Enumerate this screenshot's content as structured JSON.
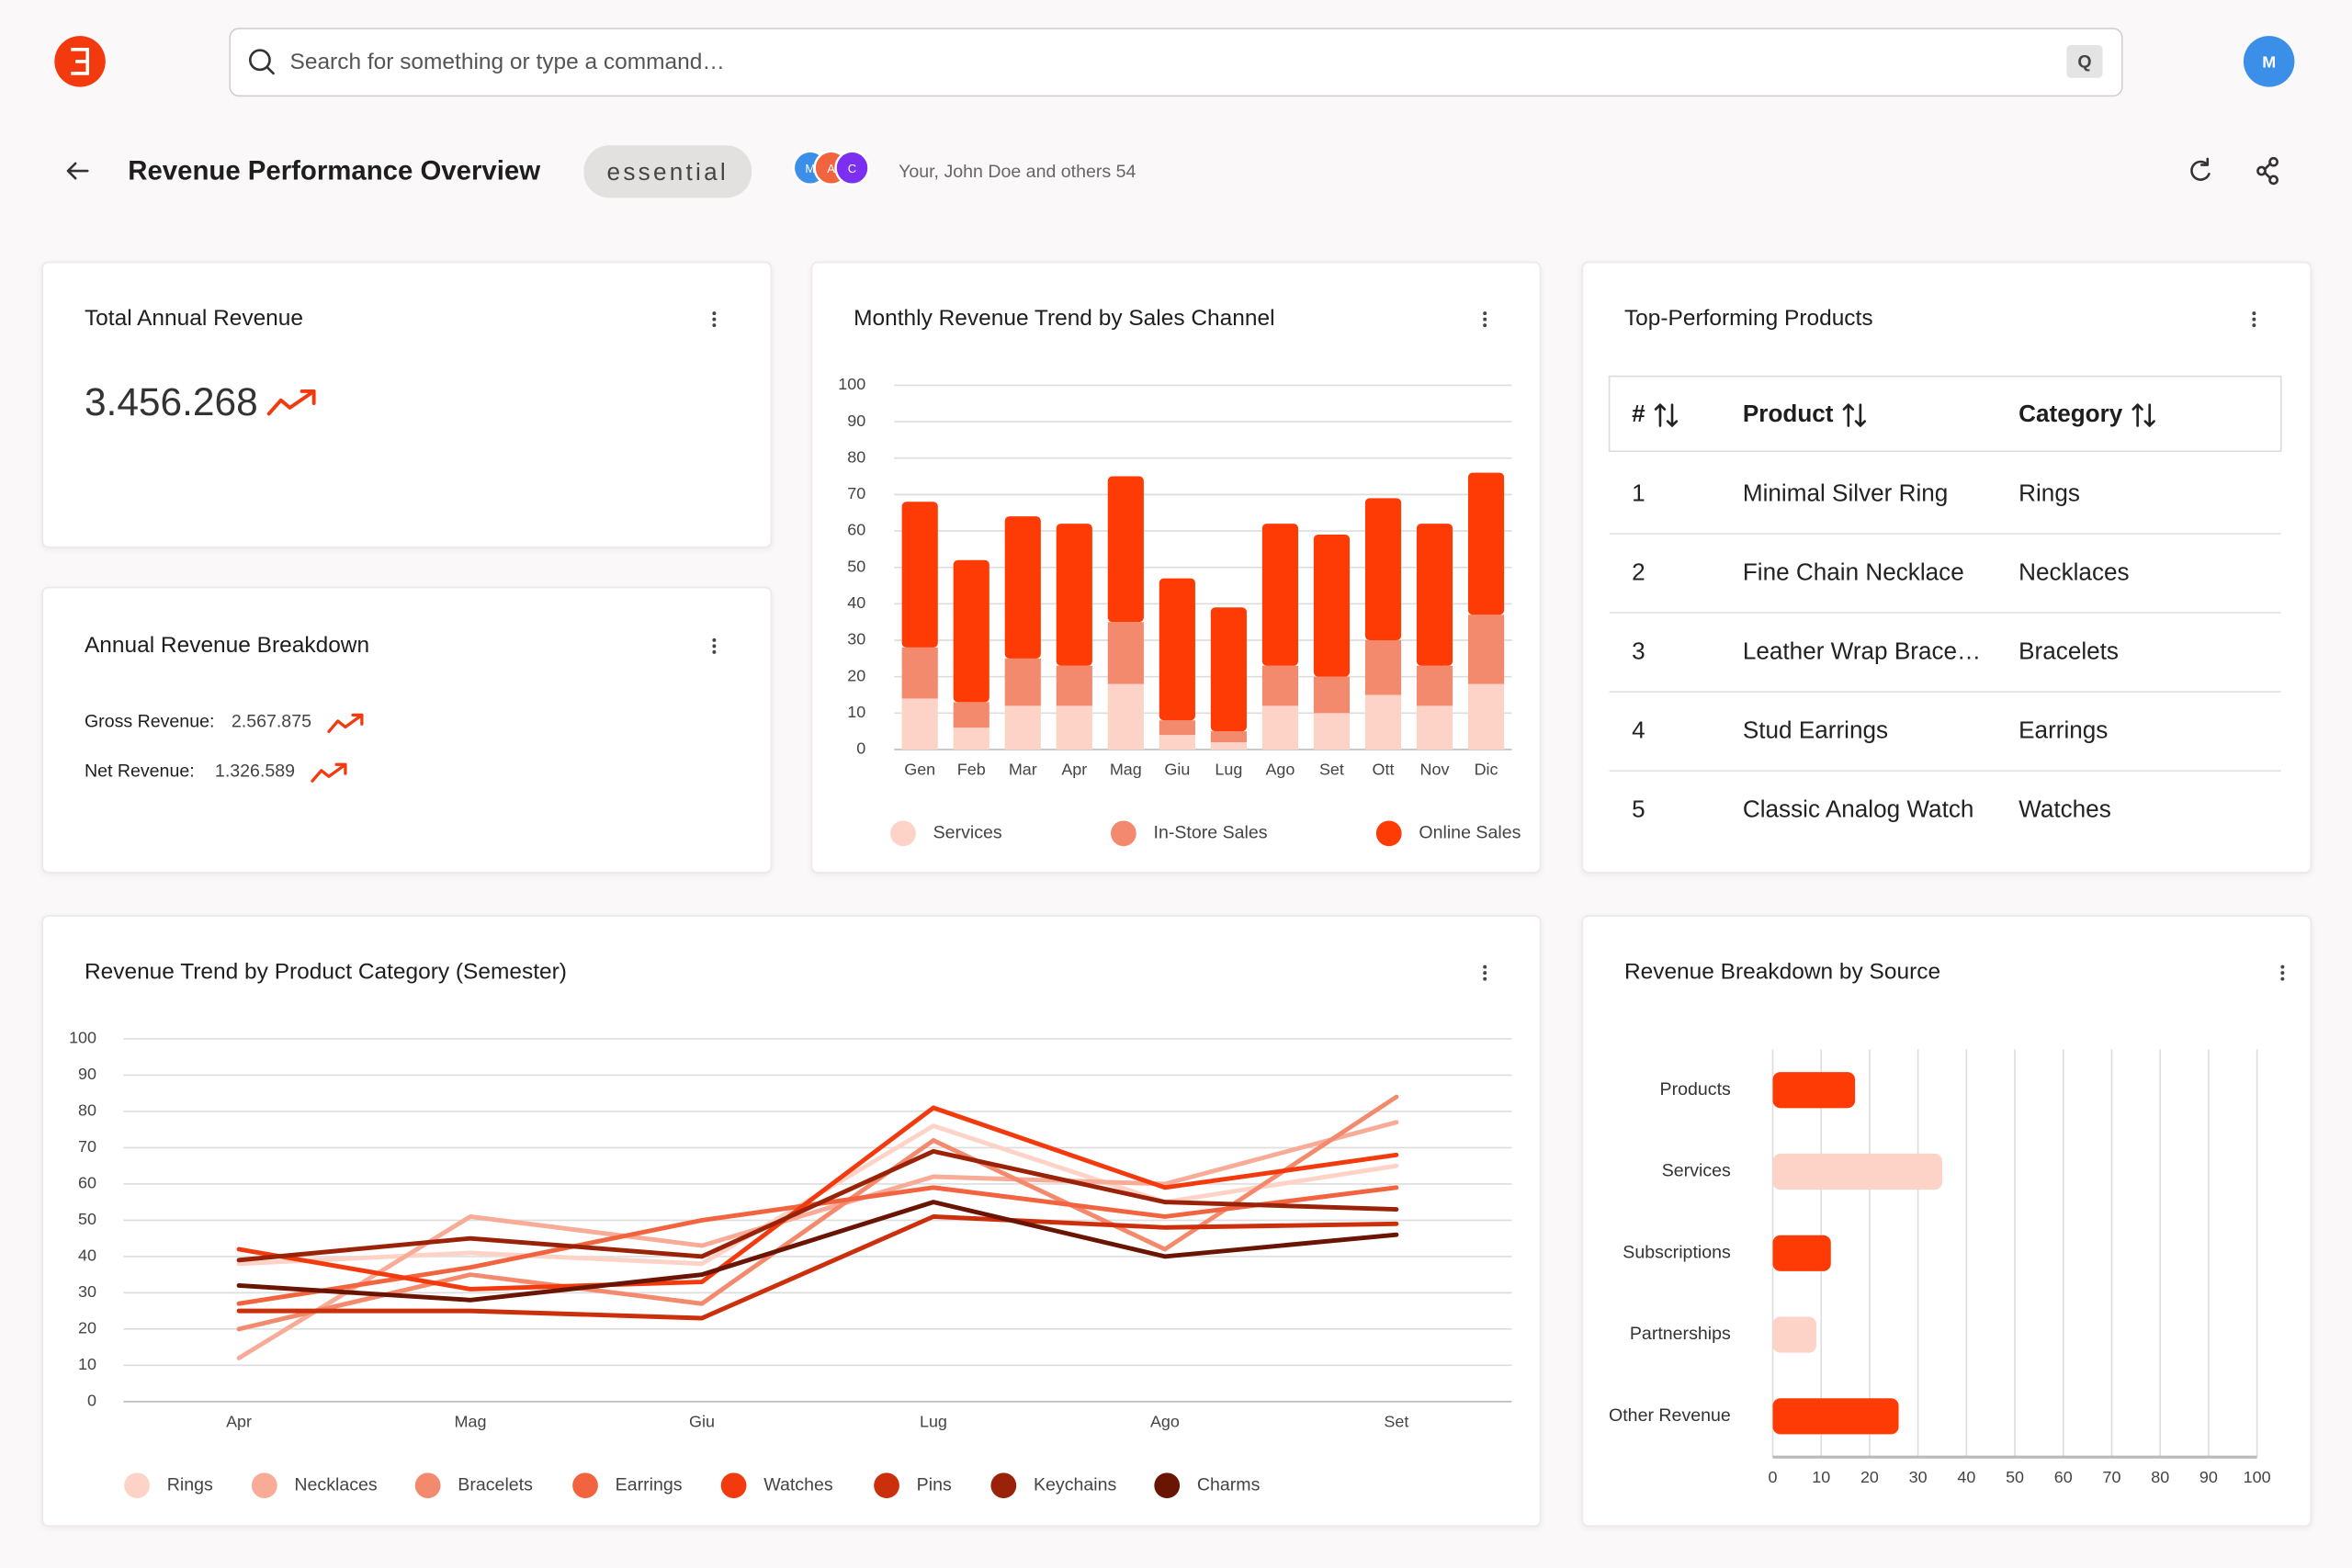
{
  "header": {
    "search_placeholder": "Search for something or type a command…",
    "search_shortcut": "Q",
    "user_initial": "M"
  },
  "toolbar": {
    "title": "Revenue Performance Overview",
    "badge": "essential",
    "collaborators": [
      "M",
      "A",
      "C"
    ],
    "shared_with": "Your, John Doe and others 54"
  },
  "total_revenue": {
    "title": "Total Annual Revenue",
    "value": "3.456.268"
  },
  "revenue_breakdown": {
    "title": "Annual Revenue Breakdown",
    "items": [
      {
        "label": "Gross Revenue:",
        "value": "2.567.875"
      },
      {
        "label": "Net Revenue:",
        "value": "1.326.589"
      }
    ]
  },
  "top_products": {
    "title": "Top-Performing Products",
    "columns": [
      "#",
      "Product",
      "Category"
    ],
    "rows": [
      [
        "1",
        "Minimal Silver Ring",
        "Rings"
      ],
      [
        "2",
        "Fine Chain Necklace",
        "Necklaces"
      ],
      [
        "3",
        "Leather Wrap Brace…",
        "Bracelets"
      ],
      [
        "4",
        "Stud Earrings",
        "Earrings"
      ],
      [
        "5",
        "Classic Analog Watch",
        "Watches"
      ]
    ]
  },
  "chart_data": [
    {
      "type": "bar",
      "stacked": true,
      "title": "Monthly Revenue Trend by Sales Channel",
      "categories": [
        "Gen",
        "Feb",
        "Mar",
        "Apr",
        "Mag",
        "Giu",
        "Lug",
        "Ago",
        "Set",
        "Ott",
        "Nov",
        "Dic"
      ],
      "series": [
        {
          "name": "Services",
          "color": "#fdd3c8",
          "values": [
            14,
            6,
            12,
            12,
            18,
            4,
            2,
            12,
            10,
            15,
            12,
            18
          ]
        },
        {
          "name": "In-Store Sales",
          "color": "#f48a6d",
          "values": [
            14,
            7,
            13,
            11,
            17,
            4,
            3,
            11,
            10,
            15,
            11,
            19
          ]
        },
        {
          "name": "Online Sales",
          "color": "#fe3b05",
          "values": [
            40,
            39,
            39,
            39,
            40,
            39,
            34,
            39,
            39,
            39,
            39,
            39
          ]
        }
      ],
      "ylim": [
        0,
        100
      ],
      "yticks": [
        0,
        10,
        20,
        30,
        40,
        50,
        60,
        70,
        80,
        90,
        100
      ],
      "grid": true
    },
    {
      "type": "line",
      "title": "Revenue Trend by Product Category (Semester)",
      "categories": [
        "Apr",
        "Mag",
        "Giu",
        "Lug",
        "Ago",
        "Set"
      ],
      "series": [
        {
          "name": "Rings",
          "color": "#fdd3c8",
          "values": [
            38,
            41,
            38,
            76,
            55,
            65
          ]
        },
        {
          "name": "Necklaces",
          "color": "#f8ab96",
          "values": [
            12,
            51,
            43,
            62,
            60,
            77
          ]
        },
        {
          "name": "Bracelets",
          "color": "#f48a6d",
          "values": [
            20,
            35,
            27,
            72,
            42,
            84
          ]
        },
        {
          "name": "Earrings",
          "color": "#f2643f",
          "values": [
            27,
            37,
            50,
            59,
            51,
            59
          ]
        },
        {
          "name": "Watches",
          "color": "#f23a0e",
          "values": [
            42,
            31,
            33,
            81,
            59,
            68
          ]
        },
        {
          "name": "Pins",
          "color": "#cc2f0b",
          "values": [
            25,
            25,
            23,
            51,
            48,
            49
          ]
        },
        {
          "name": "Keychains",
          "color": "#9a2208",
          "values": [
            39,
            45,
            40,
            69,
            55,
            53
          ]
        },
        {
          "name": "Charms",
          "color": "#6a1404",
          "values": [
            32,
            28,
            35,
            55,
            40,
            46
          ]
        }
      ],
      "ylim": [
        0,
        100
      ],
      "yticks": [
        0,
        10,
        20,
        30,
        40,
        50,
        60,
        70,
        80,
        90,
        100
      ],
      "grid": true
    },
    {
      "type": "bar",
      "orientation": "horizontal",
      "title": "Revenue Breakdown by Source",
      "categories": [
        "Products",
        "Services",
        "Subscriptions",
        "Partnerships",
        "Other Revenue"
      ],
      "values": [
        17,
        35,
        12,
        9,
        26
      ],
      "colors": [
        "#fe3b05",
        "#fdd3c8",
        "#fe3b05",
        "#fdd3c8",
        "#fe3b05"
      ],
      "xlim": [
        0,
        100
      ],
      "xticks": [
        0,
        10,
        20,
        30,
        40,
        50,
        60,
        70,
        80,
        90,
        100
      ],
      "grid": true
    }
  ]
}
